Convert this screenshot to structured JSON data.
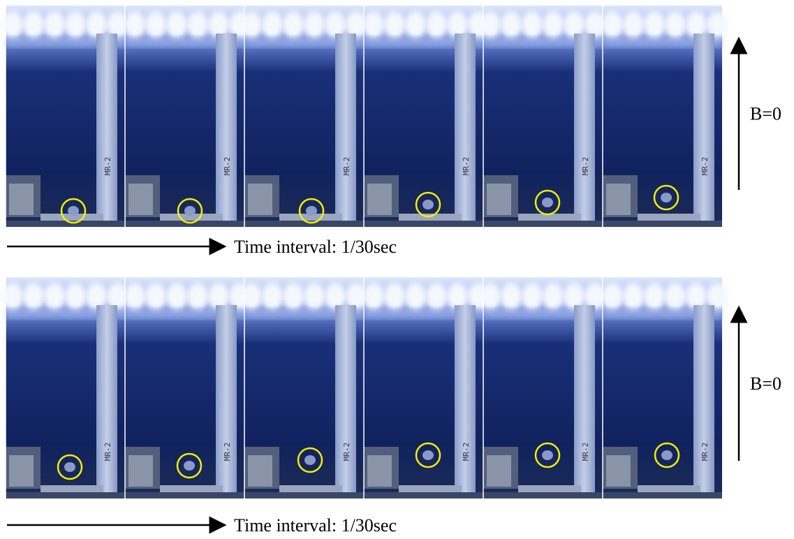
{
  "rows": [
    {
      "time_label": "Time interval: 1/30sec",
      "field_label": "B=0"
    },
    {
      "time_label": "Time interval: 1/30sec",
      "field_label": "B=0"
    }
  ],
  "rod_label": "MR-2"
}
